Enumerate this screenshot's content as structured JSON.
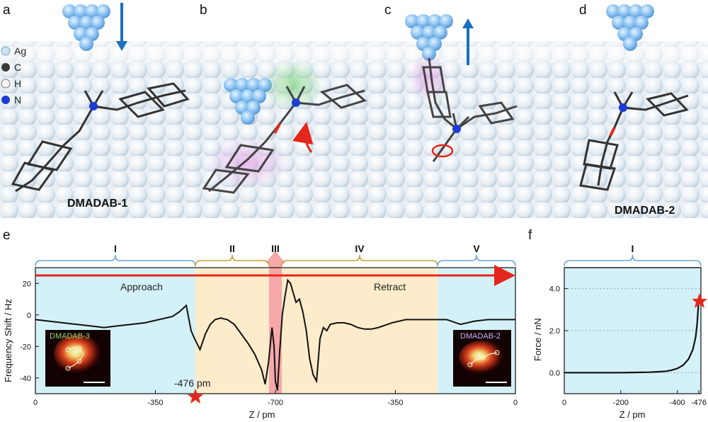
{
  "panels": {
    "a": "a",
    "b": "b",
    "c": "c",
    "d": "d",
    "e": "e",
    "f": "f"
  },
  "legend": [
    {
      "label": "Ag",
      "color": "#c9e3f2"
    },
    {
      "label": "C",
      "color": "#3a3a3a"
    },
    {
      "label": "H",
      "color": "#f4f4f4"
    },
    {
      "label": "N",
      "color": "#1f3bd6"
    }
  ],
  "molecule_labels": {
    "a": "DMADAB-1",
    "d": "DMADAB-2"
  },
  "colors": {
    "tip": "#8cc3f2",
    "arrow_blue": "#1a6fc0",
    "arrow_red": "#e5261c",
    "approach_bg": "#d4f1f8",
    "interact_bg": "#fdeccb",
    "contact_bg": "#f6a8a8"
  },
  "chart_data": [
    {
      "type": "line",
      "panel": "e",
      "ylabel": "Frequency Shift / Hz",
      "xlabel": "Z / pm",
      "x_ticks": [
        "0",
        "-350",
        "-700",
        "-350",
        "0"
      ],
      "y_ticks": [
        "20",
        "0",
        "-20",
        "-40"
      ],
      "ylim": [
        -50,
        30
      ],
      "regions": [
        "I",
        "II",
        "III",
        "IV",
        "V"
      ],
      "annotations": {
        "approach": "Approach",
        "retract": "Retract",
        "star": "-476 pm"
      },
      "insets": [
        "DMADAB-3",
        "DMADAB-2"
      ],
      "series": [
        {
          "x": [
            0,
            20,
            40,
            60,
            80,
            100,
            120,
            140,
            160,
            180,
            200,
            210,
            220,
            227,
            232,
            240,
            248,
            255,
            262,
            270,
            280,
            290,
            300,
            310,
            320,
            330,
            335,
            340,
            345,
            348,
            350,
            353,
            356,
            360,
            364,
            368,
            372,
            376,
            380,
            385,
            390,
            395,
            400,
            405,
            410,
            415,
            420,
            425,
            430,
            440,
            450,
            460,
            470,
            480,
            490,
            500,
            520,
            540,
            560,
            580,
            600,
            620,
            640,
            660,
            680,
            700
          ],
          "values": [
            -3,
            -4,
            -5,
            -6,
            -7,
            -8,
            -7,
            -6,
            -5,
            -3,
            -1,
            2,
            6,
            -10,
            -15,
            -22,
            -12,
            -6,
            -3,
            -2,
            -3,
            -6,
            -12,
            -18,
            -25,
            -35,
            -44,
            -30,
            -8,
            -20,
            -42,
            -48,
            -25,
            0,
            12,
            22,
            20,
            14,
            8,
            10,
            2,
            -10,
            -28,
            -38,
            -42,
            -15,
            -8,
            -10,
            -6,
            -5,
            -5,
            -6,
            -8,
            -9,
            -9,
            -8,
            -5,
            -3,
            -3,
            -3,
            -3,
            -6,
            -4,
            -3,
            -3,
            -3
          ]
        }
      ]
    },
    {
      "type": "line",
      "panel": "f",
      "ylabel": "Force / nN",
      "xlabel": "Z / pm",
      "x_ticks": [
        "0",
        "-200",
        "-400",
        "-476"
      ],
      "y_ticks": [
        "0.0",
        "2.0",
        "4.0"
      ],
      "ylim": [
        -1,
        5
      ],
      "regions": [
        "I"
      ],
      "series": [
        {
          "x": [
            0,
            -50,
            -100,
            -150,
            -200,
            -250,
            -300,
            -330,
            -360,
            -380,
            -400,
            -420,
            -440,
            -455,
            -465,
            -470,
            -476
          ],
          "values": [
            0.0,
            0.0,
            0.0,
            0.0,
            0.0,
            0.01,
            0.02,
            0.04,
            0.07,
            0.12,
            0.2,
            0.35,
            0.65,
            1.1,
            1.7,
            2.3,
            3.5
          ]
        }
      ]
    }
  ]
}
